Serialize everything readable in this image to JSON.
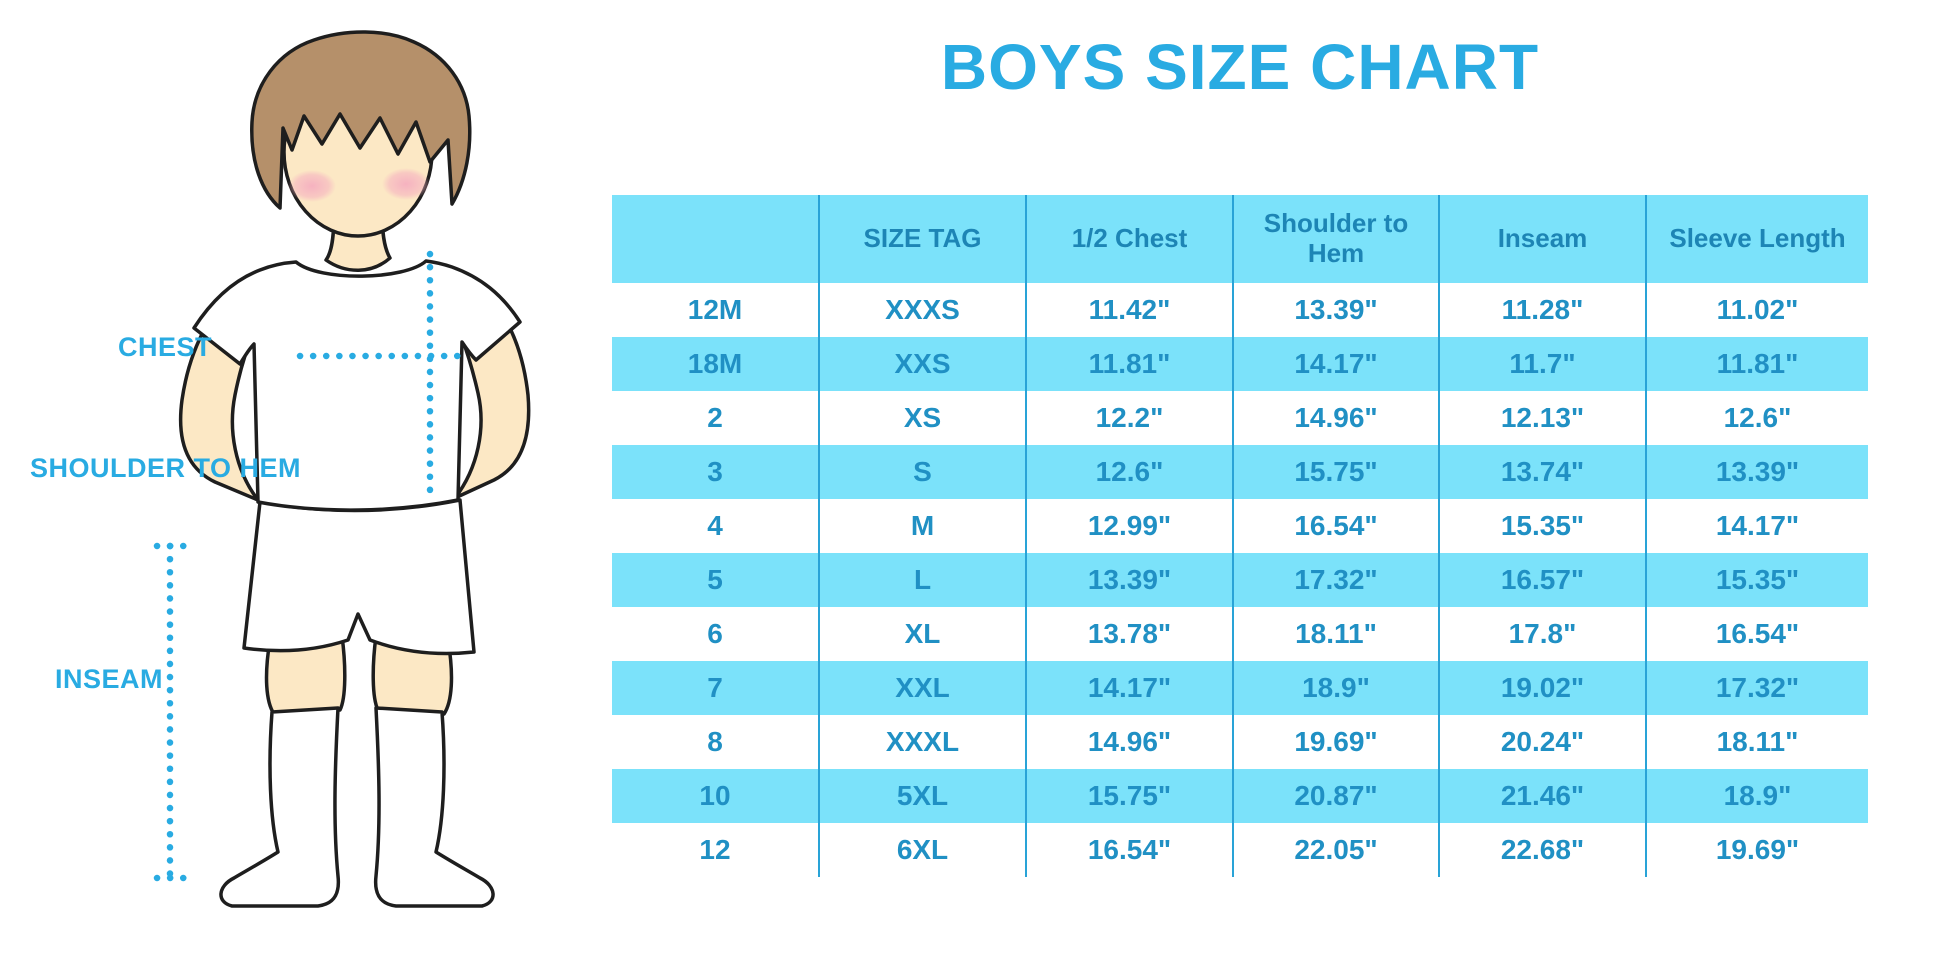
{
  "colors": {
    "accent_blue": "#29ABE2",
    "header_text": "#1D85B5",
    "cell_text": "#2090C4",
    "stripe_bg": "#7BE2FA",
    "separator": "#29A3D7",
    "hair_brown": "#B5906A",
    "skin": "#FCE8C5",
    "blush": "#F5AFC0",
    "outline": "#1E1E1E"
  },
  "figure": {
    "labels": {
      "chest": "CHEST",
      "shoulder_to_hem": "SHOULDER TO HEM",
      "inseam": "INSEAM"
    }
  },
  "chart_data": {
    "type": "table",
    "title": "BOYS SIZE CHART",
    "columns": [
      "",
      "SIZE TAG",
      "1/2 Chest",
      "Shoulder to Hem",
      "Inseam",
      "Sleeve Length"
    ],
    "rows": [
      [
        "12M",
        "XXXS",
        "11.42\"",
        "13.39\"",
        "11.28\"",
        "11.02\""
      ],
      [
        "18M",
        "XXS",
        "11.81\"",
        "14.17\"",
        "11.7\"",
        "11.81\""
      ],
      [
        "2",
        "XS",
        "12.2\"",
        "14.96\"",
        "12.13\"",
        "12.6\""
      ],
      [
        "3",
        "S",
        "12.6\"",
        "15.75\"",
        "13.74\"",
        "13.39\""
      ],
      [
        "4",
        "M",
        "12.99\"",
        "16.54\"",
        "15.35\"",
        "14.17\""
      ],
      [
        "5",
        "L",
        "13.39\"",
        "17.32\"",
        "16.57\"",
        "15.35\""
      ],
      [
        "6",
        "XL",
        "13.78\"",
        "18.11\"",
        "17.8\"",
        "16.54\""
      ],
      [
        "7",
        "XXL",
        "14.17\"",
        "18.9\"",
        "19.02\"",
        "17.32\""
      ],
      [
        "8",
        "XXXL",
        "14.96\"",
        "19.69\"",
        "20.24\"",
        "18.11\""
      ],
      [
        "10",
        "5XL",
        "15.75\"",
        "20.87\"",
        "21.46\"",
        "18.9\""
      ],
      [
        "12",
        "6XL",
        "16.54\"",
        "22.05\"",
        "22.68\"",
        "19.69\""
      ]
    ],
    "row_striping": "alternating white / light-cyan starting white",
    "legend_position": "none",
    "grid": "vertical separators only"
  }
}
